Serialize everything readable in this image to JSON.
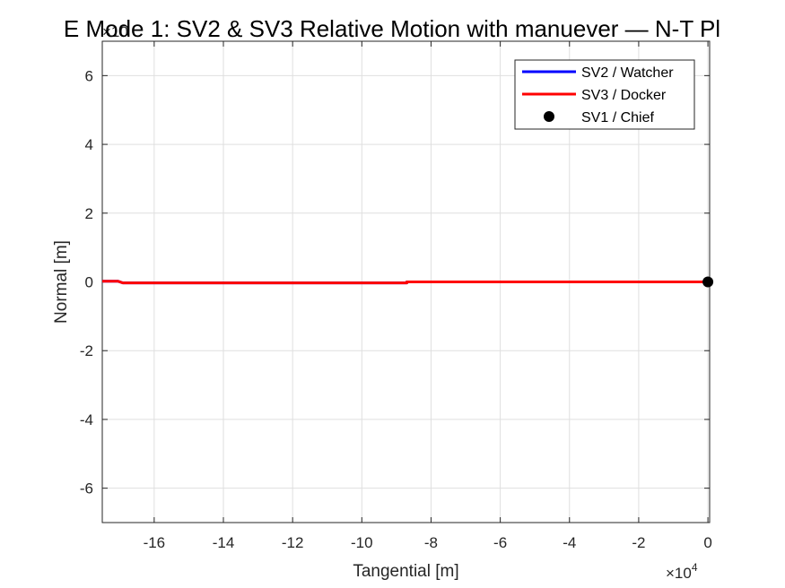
{
  "chart_data": {
    "type": "line",
    "title": "E Mode 1: SV2 & SV3 Relative Motion with manuever — N-T Pl",
    "xlabel": "Tangential [m]",
    "ylabel": "Normal [m]",
    "x_exponent": "×10",
    "x_exponent_power": "4",
    "y_exponent": "×10",
    "xlim": [
      -17.5,
      0.05
    ],
    "ylim": [
      -7,
      7
    ],
    "x_ticks": [
      -16,
      -14,
      -12,
      -10,
      -8,
      -6,
      -4,
      -2,
      0
    ],
    "y_ticks": [
      6,
      4,
      2,
      0,
      -2,
      -4,
      -6
    ],
    "grid": true,
    "legend_position": "top-right",
    "series": [
      {
        "name": "SV2 / Watcher",
        "color": "#0000ff",
        "marker": "line",
        "x": [
          -17.5,
          -17.05,
          -16.9,
          -8.7,
          -8.7,
          0
        ],
        "y": [
          0.02,
          0.02,
          -0.03,
          -0.03,
          0.0,
          0.0
        ]
      },
      {
        "name": "SV3 / Docker",
        "color": "#ff0000",
        "marker": "line",
        "x": [
          -17.5,
          -17.05,
          -16.9,
          -8.7,
          -8.7,
          0
        ],
        "y": [
          0.02,
          0.02,
          -0.03,
          -0.03,
          0.0,
          0.0
        ]
      },
      {
        "name": "SV1 / Chief",
        "color": "#000000",
        "marker": "point",
        "x": [
          0
        ],
        "y": [
          0
        ]
      }
    ]
  }
}
